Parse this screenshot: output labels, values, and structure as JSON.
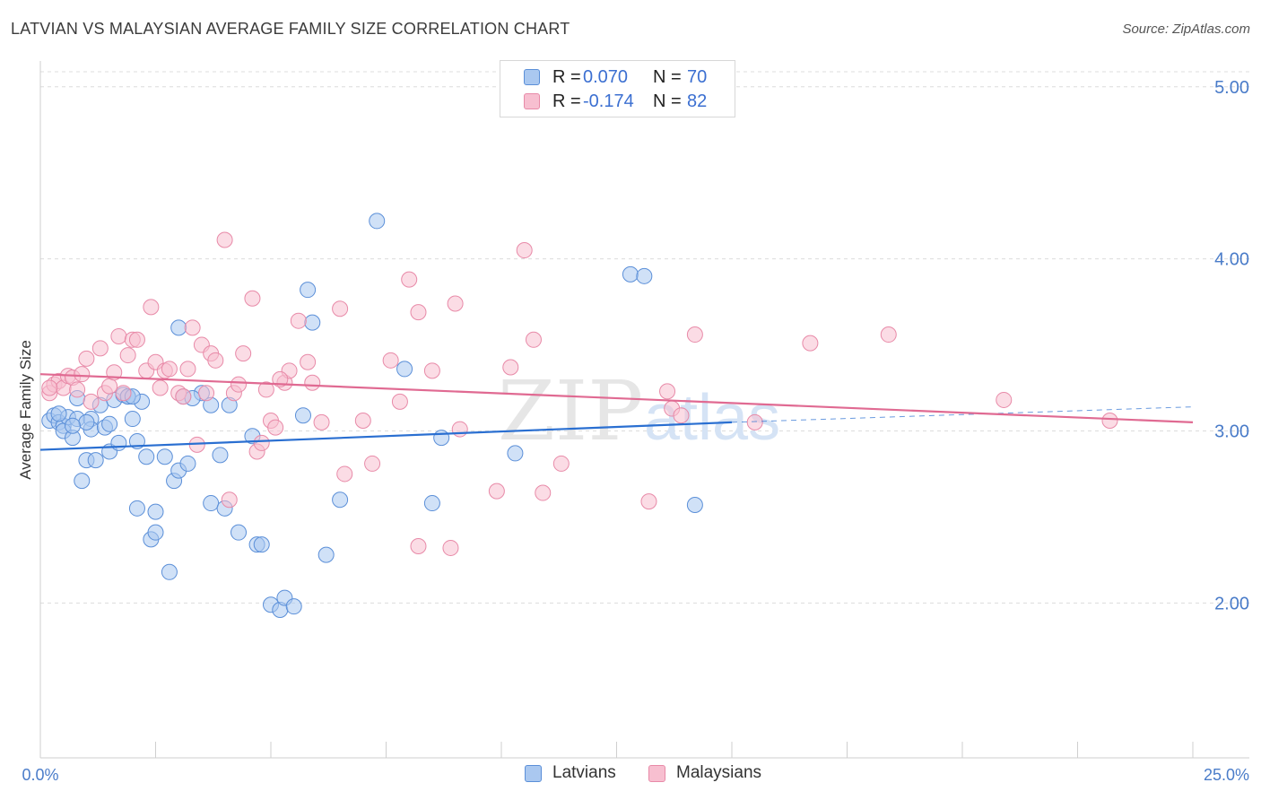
{
  "title": "LATVIAN VS MALAYSIAN AVERAGE FAMILY SIZE CORRELATION CHART",
  "source": "Source: ZipAtlas.com",
  "watermark": {
    "zip": "ZIP",
    "atlas": "atlas"
  },
  "legend": {
    "series": [
      {
        "r_label": "R =",
        "r_value": "0.070",
        "n_label": "N =",
        "n_value": "70"
      },
      {
        "r_label": "R =",
        "r_value": "-0.174",
        "n_label": "N =",
        "n_value": "82"
      }
    ]
  },
  "colors": {
    "latvians_fill": "#aac8f0",
    "latvians_stroke": "#5b8fd8",
    "latvians_line": "#2a6fd1",
    "malaysians_fill": "#f7bfd0",
    "malaysians_stroke": "#e88aa8",
    "malaysians_line": "#e06a92",
    "tick_text": "#4a7cc9",
    "grid": "#dcdcdc"
  },
  "chart_data": {
    "type": "scatter",
    "ylabel": "Average Family Size",
    "xlabel": "",
    "xlim": [
      0,
      25
    ],
    "ylim": [
      1.1,
      5.15
    ],
    "x_tick_labels": [
      "0.0%",
      "25.0%"
    ],
    "y_ticks": [
      2.0,
      3.0,
      4.0,
      5.0
    ],
    "y_tick_labels": [
      "2.00",
      "3.00",
      "4.00",
      "5.00"
    ],
    "grid": true,
    "legend_position": "bottom",
    "series": [
      {
        "name": "Latvians",
        "trend": {
          "x0": 0,
          "y0": 2.89,
          "x1": 15,
          "y1": 3.05,
          "dashed_to_x": 25,
          "dashed_to_y": 3.14
        },
        "points": [
          [
            0.2,
            3.06
          ],
          [
            0.3,
            3.09
          ],
          [
            0.4,
            3.05
          ],
          [
            0.5,
            3.03
          ],
          [
            0.5,
            3.0
          ],
          [
            0.6,
            3.08
          ],
          [
            0.7,
            2.96
          ],
          [
            0.8,
            3.07
          ],
          [
            0.8,
            3.19
          ],
          [
            0.9,
            2.71
          ],
          [
            1.0,
            2.83
          ],
          [
            1.1,
            3.07
          ],
          [
            1.1,
            3.01
          ],
          [
            1.2,
            2.83
          ],
          [
            1.3,
            3.15
          ],
          [
            1.4,
            3.02
          ],
          [
            1.5,
            2.88
          ],
          [
            1.5,
            3.04
          ],
          [
            1.6,
            3.18
          ],
          [
            1.7,
            2.93
          ],
          [
            1.8,
            3.21
          ],
          [
            1.9,
            3.2
          ],
          [
            2.0,
            3.07
          ],
          [
            2.1,
            2.94
          ],
          [
            2.1,
            2.55
          ],
          [
            2.2,
            3.17
          ],
          [
            2.3,
            2.85
          ],
          [
            2.4,
            2.37
          ],
          [
            2.5,
            2.41
          ],
          [
            2.5,
            2.53
          ],
          [
            2.7,
            2.85
          ],
          [
            2.8,
            2.18
          ],
          [
            2.9,
            2.71
          ],
          [
            3.0,
            2.77
          ],
          [
            3.0,
            3.6
          ],
          [
            3.1,
            3.2
          ],
          [
            3.2,
            2.81
          ],
          [
            3.5,
            3.22
          ],
          [
            3.7,
            3.15
          ],
          [
            3.7,
            2.58
          ],
          [
            3.9,
            2.86
          ],
          [
            4.0,
            2.55
          ],
          [
            4.1,
            3.15
          ],
          [
            4.3,
            2.41
          ],
          [
            4.6,
            2.97
          ],
          [
            4.7,
            2.34
          ],
          [
            4.8,
            2.34
          ],
          [
            5.0,
            1.99
          ],
          [
            5.2,
            1.96
          ],
          [
            5.3,
            2.03
          ],
          [
            5.5,
            1.98
          ],
          [
            5.7,
            3.09
          ],
          [
            5.8,
            3.82
          ],
          [
            5.9,
            3.63
          ],
          [
            6.2,
            2.28
          ],
          [
            6.5,
            2.6
          ],
          [
            7.3,
            4.22
          ],
          [
            7.9,
            3.36
          ],
          [
            8.5,
            2.58
          ],
          [
            8.7,
            2.96
          ],
          [
            10.3,
            2.87
          ],
          [
            12.8,
            3.91
          ],
          [
            13.1,
            3.9
          ],
          [
            14.2,
            2.57
          ],
          [
            1.9,
            3.2
          ],
          [
            3.3,
            3.19
          ],
          [
            0.4,
            3.1
          ],
          [
            1.0,
            3.05
          ],
          [
            2.0,
            3.2
          ],
          [
            0.7,
            3.03
          ]
        ]
      },
      {
        "name": "Malaysians",
        "trend": {
          "x0": 0,
          "y0": 3.33,
          "x1": 25,
          "y1": 3.05
        },
        "points": [
          [
            0.2,
            3.22
          ],
          [
            0.3,
            3.27
          ],
          [
            0.4,
            3.29
          ],
          [
            0.5,
            3.25
          ],
          [
            0.6,
            3.32
          ],
          [
            0.7,
            3.31
          ],
          [
            0.8,
            3.24
          ],
          [
            0.9,
            3.33
          ],
          [
            1.0,
            3.42
          ],
          [
            1.1,
            3.17
          ],
          [
            1.3,
            3.48
          ],
          [
            1.4,
            3.22
          ],
          [
            1.5,
            3.26
          ],
          [
            1.6,
            3.34
          ],
          [
            1.7,
            3.55
          ],
          [
            1.8,
            3.22
          ],
          [
            1.9,
            3.44
          ],
          [
            2.0,
            3.53
          ],
          [
            2.1,
            3.53
          ],
          [
            2.3,
            3.35
          ],
          [
            2.4,
            3.72
          ],
          [
            2.5,
            3.4
          ],
          [
            2.6,
            3.25
          ],
          [
            2.7,
            3.35
          ],
          [
            2.8,
            3.36
          ],
          [
            3.0,
            3.22
          ],
          [
            3.1,
            3.2
          ],
          [
            3.2,
            3.36
          ],
          [
            3.3,
            3.6
          ],
          [
            3.4,
            2.92
          ],
          [
            3.5,
            3.5
          ],
          [
            3.6,
            3.22
          ],
          [
            3.7,
            3.45
          ],
          [
            3.8,
            3.41
          ],
          [
            4.0,
            4.11
          ],
          [
            4.1,
            2.6
          ],
          [
            4.2,
            3.22
          ],
          [
            4.3,
            3.27
          ],
          [
            4.4,
            3.45
          ],
          [
            4.6,
            3.77
          ],
          [
            4.7,
            2.88
          ],
          [
            4.8,
            2.93
          ],
          [
            4.9,
            3.24
          ],
          [
            5.0,
            3.06
          ],
          [
            5.1,
            3.02
          ],
          [
            5.3,
            3.28
          ],
          [
            5.4,
            3.35
          ],
          [
            5.6,
            3.64
          ],
          [
            5.8,
            3.4
          ],
          [
            5.9,
            3.28
          ],
          [
            6.1,
            3.05
          ],
          [
            6.5,
            3.71
          ],
          [
            6.6,
            2.75
          ],
          [
            7.0,
            3.06
          ],
          [
            7.2,
            2.81
          ],
          [
            7.6,
            3.41
          ],
          [
            7.8,
            3.17
          ],
          [
            8.0,
            3.88
          ],
          [
            8.2,
            2.33
          ],
          [
            8.2,
            3.69
          ],
          [
            8.5,
            3.35
          ],
          [
            8.9,
            2.32
          ],
          [
            9.0,
            3.74
          ],
          [
            9.1,
            3.01
          ],
          [
            9.9,
            2.65
          ],
          [
            10.2,
            3.37
          ],
          [
            10.5,
            4.05
          ],
          [
            10.7,
            3.53
          ],
          [
            10.9,
            2.64
          ],
          [
            11.3,
            2.81
          ],
          [
            13.2,
            2.59
          ],
          [
            13.6,
            3.23
          ],
          [
            13.7,
            3.13
          ],
          [
            13.9,
            3.09
          ],
          [
            14.2,
            3.56
          ],
          [
            15.5,
            3.05
          ],
          [
            16.7,
            3.51
          ],
          [
            18.4,
            3.56
          ],
          [
            20.9,
            3.18
          ],
          [
            23.2,
            3.06
          ],
          [
            0.2,
            3.25
          ],
          [
            5.2,
            3.3
          ]
        ]
      }
    ]
  }
}
